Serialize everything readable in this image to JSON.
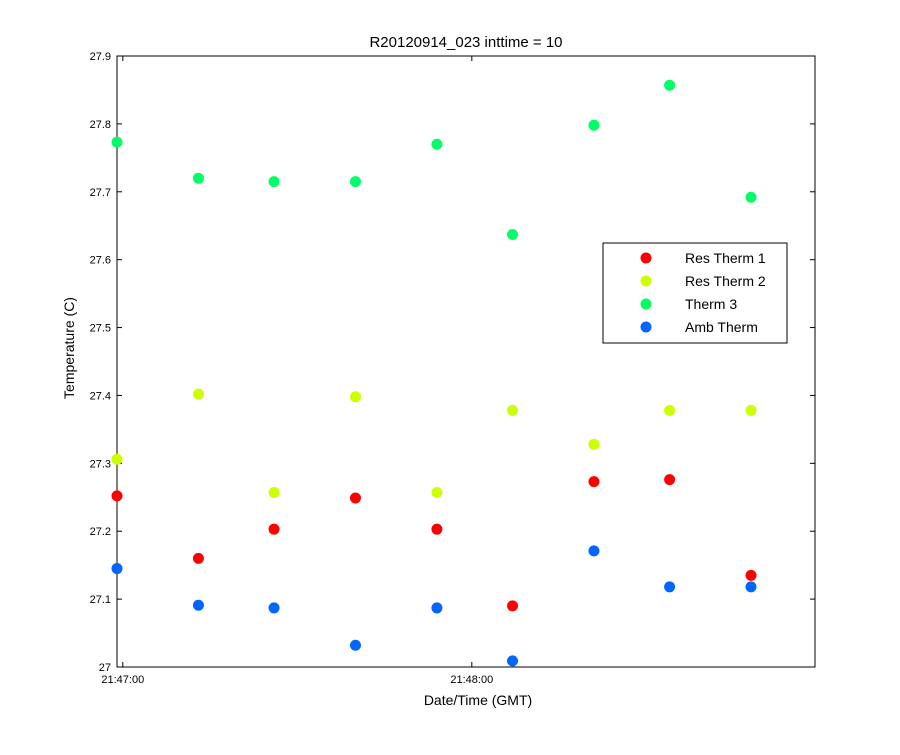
{
  "chart_data": {
    "type": "scatter",
    "title": "R20120914_023 inttime = 10",
    "xlabel": "Date/Time (GMT)",
    "ylabel": "Temperature (C)",
    "x_unit": "time (hh:mm:ss, GMT)",
    "xlim": [
      "21:46:59",
      "21:48:59"
    ],
    "ylim": [
      27.0,
      27.9
    ],
    "y_ticks": [
      "27",
      "27.1",
      "27.2",
      "27.3",
      "27.4",
      "27.5",
      "27.6",
      "27.7",
      "27.8",
      "27.9"
    ],
    "x_ticks": [
      {
        "label": "21:47:00",
        "value": "21:47:00"
      },
      {
        "label": "21:48:00",
        "value": "21:48:00"
      }
    ],
    "grid": false,
    "legend_position": "right",
    "x": [
      "21:46:59",
      "21:47:13",
      "21:47:26",
      "21:47:40",
      "21:47:54",
      "21:48:07",
      "21:48:21",
      "21:48:34",
      "21:48:48"
    ],
    "series": [
      {
        "name": "Res Therm 1",
        "color": "#ff0000",
        "values": [
          27.252,
          27.16,
          27.203,
          27.249,
          27.203,
          27.09,
          27.273,
          27.276,
          27.135
        ]
      },
      {
        "name": "Res Therm 2",
        "color": "#ccff00",
        "values": [
          27.306,
          27.402,
          27.257,
          27.398,
          27.257,
          27.378,
          27.328,
          27.378,
          27.378
        ]
      },
      {
        "name": "Therm 3",
        "color": "#00ff66",
        "values": [
          27.773,
          27.72,
          27.715,
          27.715,
          27.77,
          27.637,
          27.798,
          27.857,
          27.692
        ]
      },
      {
        "name": "Amb Therm",
        "color": "#0066ff",
        "values": [
          27.145,
          27.091,
          27.087,
          27.032,
          27.087,
          27.009,
          27.171,
          27.118,
          27.118
        ]
      }
    ]
  }
}
